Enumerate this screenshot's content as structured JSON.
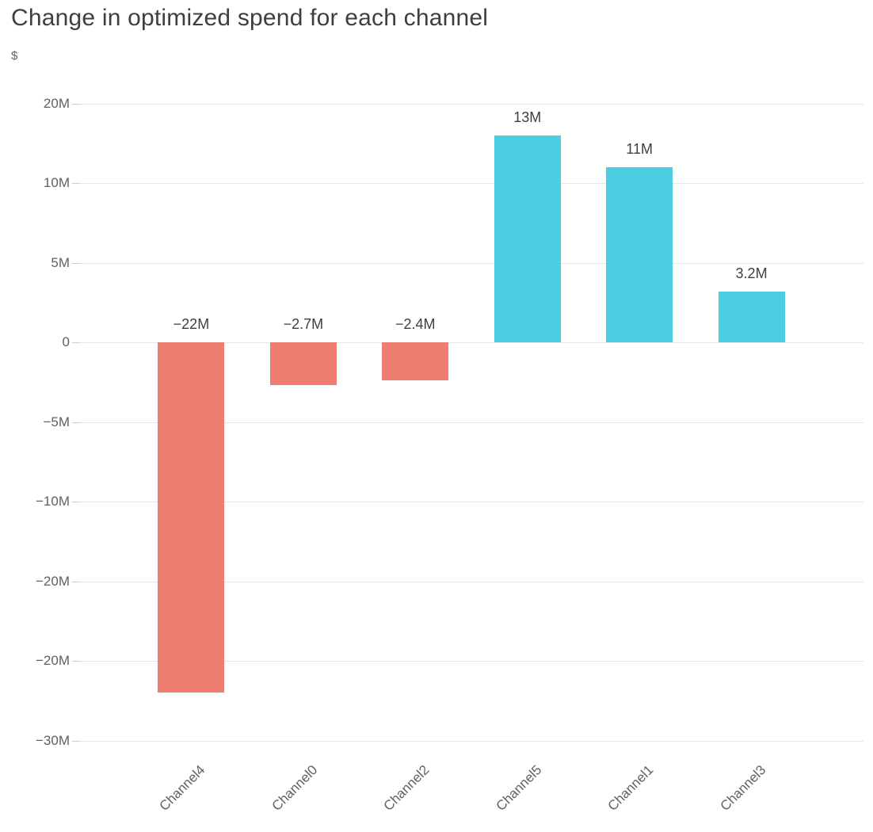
{
  "chart_data": {
    "type": "bar",
    "title": "Change in optimized spend for each channel",
    "ylabel": "$",
    "xlabel": "",
    "legend": "none",
    "grid": true,
    "categories": [
      "Channel4",
      "Channel0",
      "Channel2",
      "Channel5",
      "Channel1",
      "Channel3"
    ],
    "values_millions": [
      -22,
      -2.7,
      -2.4,
      13,
      11,
      3.2
    ],
    "bar_labels": [
      "−22M",
      "−2.7M",
      "−2.4M",
      "13M",
      "11M",
      "3.2M"
    ],
    "ylim_millions": [
      -27,
      17
    ],
    "yticks": [
      {
        "value": 15,
        "label": "20M"
      },
      {
        "value": 10,
        "label": "10M"
      },
      {
        "value": 5,
        "label": "5M"
      },
      {
        "value": 0,
        "label": "0"
      },
      {
        "value": -5,
        "label": "−5M"
      },
      {
        "value": -10,
        "label": "−10M"
      },
      {
        "value": -15,
        "label": "−20M"
      },
      {
        "value": -20,
        "label": "−20M"
      },
      {
        "value": -25,
        "label": "−30M"
      }
    ],
    "colors": {
      "positive": "#4bcde4",
      "negative": "#ee7e72",
      "title_text": "#3c4043",
      "axis_text": "#616161",
      "gridline": "#e6e6e6",
      "background": "#ffffff"
    }
  }
}
